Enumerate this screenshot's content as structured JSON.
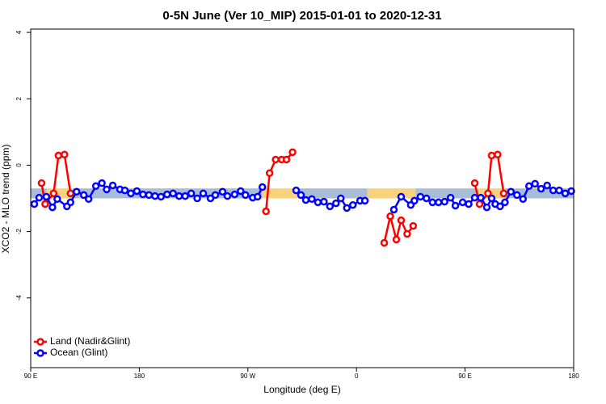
{
  "chart_data": {
    "type": "line",
    "title": "0-5N June (Ver 10_MIP)   2015-01-01 to 2020-12-31",
    "x_label": "Longitude (deg E)",
    "y_label": "XCO2 - MLO trend (ppm)",
    "xlim": [
      90,
      540
    ],
    "ylim": [
      -6.1,
      4.1
    ],
    "xticks": [
      {
        "value": 90,
        "label": "90 E"
      },
      180,
      {
        "value": 270,
        "label": "90 W"
      },
      {
        "value": 360,
        "label": "0"
      },
      {
        "value": 450,
        "label": "90 E"
      },
      {
        "value": 540,
        "label": "180"
      }
    ],
    "yticks": [
      4,
      2,
      0,
      -2,
      -4
    ],
    "legend": "bottom-left",
    "band": {
      "range": [
        -1.0,
        -0.7
      ],
      "segments": [
        {
          "x": [
            90,
            103
          ],
          "color": "#a9bdd8"
        },
        {
          "x": [
            103,
            125
          ],
          "color": "#f8d27c"
        },
        {
          "x": [
            125,
            282
          ],
          "color": "#a9bdd8"
        },
        {
          "x": [
            282,
            312
          ],
          "color": "#f8d27c"
        },
        {
          "x": [
            312,
            369
          ],
          "color": "#a9bdd8"
        },
        {
          "x": [
            369,
            409
          ],
          "color": "#f8d27c"
        },
        {
          "x": [
            409,
            460
          ],
          "color": "#a9bdd8"
        },
        {
          "x": [
            460,
            483
          ],
          "color": "#f8d27c"
        },
        {
          "x": [
            483,
            540
          ],
          "color": "#a9bdd8"
        }
      ]
    },
    "series": [
      {
        "name": "Land (Nadir&Glint)",
        "color": "#ff0000",
        "x": [
          99,
          102,
          109,
          113,
          118,
          123,
          null,
          285,
          288,
          293,
          298,
          302,
          307,
          null,
          383,
          388,
          393,
          397,
          402,
          407,
          null,
          458,
          462,
          469,
          472,
          477,
          482
        ],
        "values": [
          -0.54,
          -1.17,
          -0.85,
          0.29,
          0.32,
          -0.85,
          null,
          -1.39,
          -0.24,
          0.17,
          0.17,
          0.17,
          0.39,
          null,
          -2.34,
          -1.54,
          -2.24,
          -1.66,
          -2.07,
          -1.83,
          null,
          -0.54,
          -1.17,
          -0.85,
          0.29,
          0.32,
          -0.85
        ]
      },
      {
        "name": "Ocean (Glint)",
        "color": "#0000ff",
        "x": [
          93,
          97,
          103,
          108,
          112,
          120,
          123,
          128,
          134,
          138,
          144,
          149,
          153,
          158,
          164,
          168,
          173,
          178,
          183,
          188,
          193,
          198,
          203,
          208,
          213,
          218,
          223,
          228,
          233,
          239,
          243,
          249,
          253,
          259,
          264,
          268,
          274,
          278,
          282,
          null,
          310,
          314,
          318,
          323,
          328,
          333,
          338,
          343,
          347,
          352,
          357,
          363,
          367,
          null,
          391,
          397,
          405,
          408,
          413,
          418,
          423,
          428,
          433,
          438,
          442,
          448,
          453,
          458,
          463,
          468,
          472,
          475,
          479,
          483,
          488,
          493,
          498,
          503,
          508,
          513,
          518,
          523,
          528,
          533,
          538
        ],
        "values": [
          -1.17,
          -0.98,
          -0.95,
          -1.27,
          -1.02,
          -1.24,
          -1.12,
          -0.8,
          -0.9,
          -1.02,
          -0.63,
          -0.54,
          -0.73,
          -0.61,
          -0.73,
          -0.76,
          -0.85,
          -0.78,
          -0.88,
          -0.9,
          -0.93,
          -0.95,
          -0.88,
          -0.85,
          -0.93,
          -0.93,
          -0.85,
          -1.0,
          -0.85,
          -1.0,
          -0.9,
          -0.8,
          -0.93,
          -0.88,
          -0.78,
          -0.9,
          -0.98,
          -0.95,
          -0.66,
          null,
          -0.76,
          -0.9,
          -1.05,
          -1.02,
          -1.12,
          -1.1,
          -1.24,
          -1.15,
          -1.0,
          -1.29,
          -1.2,
          -1.07,
          -1.07,
          null,
          -1.34,
          -0.95,
          -1.2,
          -1.07,
          -0.95,
          -1.0,
          -1.12,
          -1.12,
          -1.1,
          -0.98,
          -1.22,
          -1.12,
          -1.17,
          -0.98,
          -0.98,
          -1.27,
          -1.0,
          -1.17,
          -1.24,
          -1.12,
          -0.8,
          -0.9,
          -1.02,
          -0.63,
          -0.56,
          -0.71,
          -0.61,
          -0.76,
          -0.76,
          -0.85,
          -0.78
        ]
      }
    ]
  }
}
